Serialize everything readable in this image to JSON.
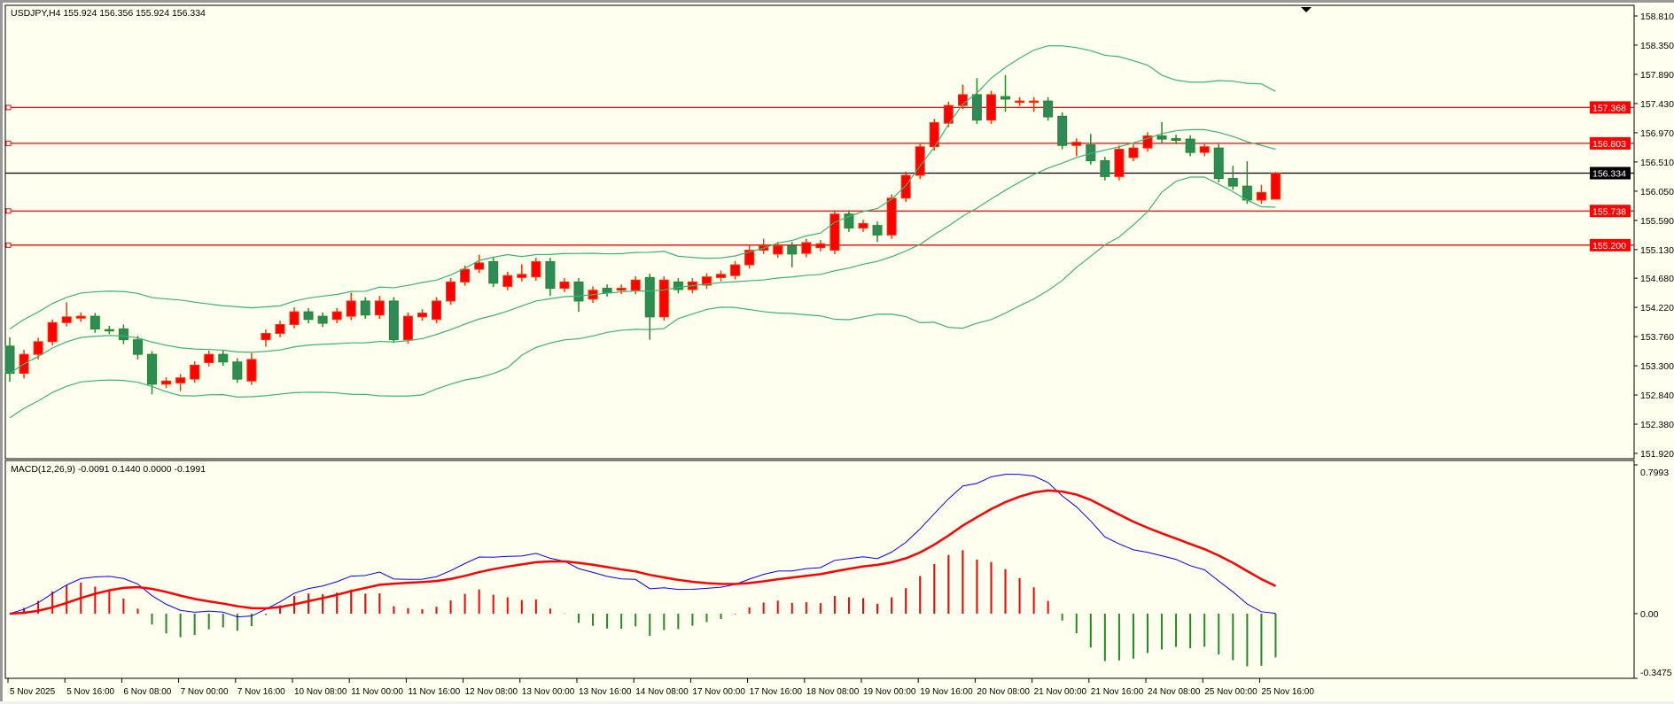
{
  "symbol_header": "USDJPY,H4  155.924 156.356 155.924 156.334",
  "macd_header": "MACD(12,26,9) -0.0091 0.1440 0.0000 -0.1991",
  "colors": {
    "background": "#FFFFF0",
    "bull": "#FF0000",
    "bull_border": "#FF3300",
    "bear": "#2E8B57",
    "bear_border": "#228B22",
    "bands": "#3CB371",
    "level": "#FF0000",
    "current": "#000000",
    "macd_main": "#0000FF",
    "macd_signal": "#FF0000"
  },
  "price_axis": [
    "158.810",
    "158.350",
    "157.890",
    "157.430",
    "156.970",
    "156.510",
    "156.050",
    "155.590",
    "155.130",
    "154.680",
    "154.220",
    "153.760",
    "153.300",
    "152.840",
    "152.380",
    "151.920"
  ],
  "levels": [
    {
      "label": "157.368",
      "price": 157.368,
      "type": "level"
    },
    {
      "label": "156.803",
      "price": 156.803,
      "type": "level"
    },
    {
      "label": "156.334",
      "price": 156.334,
      "type": "current"
    },
    {
      "label": "155.738",
      "price": 155.738,
      "type": "level"
    },
    {
      "label": "155.200",
      "price": 155.2,
      "type": "level"
    }
  ],
  "macd_axis": [
    "0.7993",
    "0.00",
    "-0.3475"
  ],
  "time_axis": [
    "5 Nov 2025",
    "5 Nov 16:00",
    "6 Nov 08:00",
    "7 Nov 00:00",
    "7 Nov 16:00",
    "10 Nov 08:00",
    "11 Nov 00:00",
    "11 Nov 16:00",
    "12 Nov 08:00",
    "13 Nov 00:00",
    "13 Nov 16:00",
    "14 Nov 08:00",
    "17 Nov 00:00",
    "17 Nov 16:00",
    "18 Nov 08:00",
    "19 Nov 00:00",
    "19 Nov 16:00",
    "20 Nov 08:00",
    "21 Nov 00:00",
    "21 Nov 16:00",
    "24 Nov 08:00",
    "25 Nov 00:00",
    "25 Nov 16:00"
  ],
  "chart_data": {
    "type": "candlestick",
    "title": "USDJPY,H4",
    "ylim": [
      151.92,
      158.81
    ],
    "macd_ylim": [
      -0.3475,
      0.7993
    ],
    "bollinger": {
      "period": 20,
      "deviations": 2
    },
    "macd": {
      "fast": 12,
      "slow": 26,
      "signal": 9
    },
    "ohlc": [
      [
        153.61,
        153.75,
        153.05,
        153.18
      ],
      [
        153.18,
        153.55,
        153.1,
        153.48
      ],
      [
        153.48,
        153.74,
        153.4,
        153.68
      ],
      [
        153.68,
        154.03,
        153.62,
        153.98
      ],
      [
        153.98,
        154.3,
        153.92,
        154.07
      ],
      [
        154.05,
        154.14,
        153.99,
        154.08
      ],
      [
        154.08,
        154.13,
        153.82,
        153.88
      ],
      [
        153.87,
        153.93,
        153.8,
        153.86
      ],
      [
        153.88,
        153.95,
        153.64,
        153.71
      ],
      [
        153.71,
        153.77,
        153.4,
        153.48
      ],
      [
        153.48,
        153.53,
        152.85,
        153.01
      ],
      [
        153.01,
        153.12,
        152.95,
        153.06
      ],
      [
        153.03,
        153.17,
        152.9,
        153.11
      ],
      [
        153.09,
        153.37,
        153.03,
        153.31
      ],
      [
        153.35,
        153.54,
        153.29,
        153.48
      ],
      [
        153.48,
        153.54,
        153.3,
        153.36
      ],
      [
        153.36,
        153.42,
        153.03,
        153.09
      ],
      [
        153.06,
        153.5,
        153.0,
        153.4
      ],
      [
        153.71,
        153.87,
        153.6,
        153.81
      ],
      [
        153.81,
        154.01,
        153.75,
        153.95
      ],
      [
        153.95,
        154.22,
        153.89,
        154.15
      ],
      [
        154.15,
        154.21,
        153.97,
        154.03
      ],
      [
        154.08,
        154.14,
        153.91,
        153.97
      ],
      [
        154.03,
        154.21,
        153.97,
        154.15
      ],
      [
        154.08,
        154.45,
        154.02,
        154.32
      ],
      [
        154.32,
        154.38,
        154.04,
        154.1
      ],
      [
        154.1,
        154.4,
        154.04,
        154.32
      ],
      [
        154.32,
        154.38,
        153.66,
        153.71
      ],
      [
        153.71,
        154.14,
        153.65,
        154.08
      ],
      [
        154.07,
        154.19,
        154.01,
        154.13
      ],
      [
        154.03,
        154.38,
        153.97,
        154.32
      ],
      [
        154.32,
        154.68,
        154.26,
        154.62
      ],
      [
        154.62,
        154.88,
        154.56,
        154.82
      ],
      [
        154.82,
        155.05,
        154.76,
        154.92
      ],
      [
        154.94,
        155.0,
        154.54,
        154.6
      ],
      [
        154.55,
        154.78,
        154.49,
        154.72
      ],
      [
        154.69,
        154.9,
        154.63,
        154.74
      ],
      [
        154.7,
        155.0,
        154.64,
        154.94
      ],
      [
        154.94,
        155.0,
        154.4,
        154.52
      ],
      [
        154.52,
        154.68,
        154.46,
        154.62
      ],
      [
        154.62,
        154.68,
        154.15,
        154.32
      ],
      [
        154.35,
        154.55,
        154.29,
        154.49
      ],
      [
        154.52,
        154.58,
        154.39,
        154.45
      ],
      [
        154.49,
        154.58,
        154.43,
        154.52
      ],
      [
        154.49,
        154.71,
        154.43,
        154.65
      ],
      [
        154.69,
        154.75,
        153.71,
        154.07
      ],
      [
        154.07,
        154.71,
        154.01,
        154.65
      ],
      [
        154.62,
        154.68,
        154.44,
        154.5
      ],
      [
        154.5,
        154.68,
        154.44,
        154.62
      ],
      [
        154.57,
        154.76,
        154.51,
        154.7
      ],
      [
        154.69,
        154.8,
        154.63,
        154.74
      ],
      [
        154.72,
        154.95,
        154.66,
        154.89
      ],
      [
        154.89,
        155.2,
        154.83,
        155.12
      ],
      [
        155.12,
        155.3,
        155.06,
        155.19
      ],
      [
        155.06,
        155.25,
        155.0,
        155.19
      ],
      [
        155.19,
        155.25,
        154.85,
        155.06
      ],
      [
        155.07,
        155.3,
        155.01,
        155.24
      ],
      [
        155.16,
        155.28,
        155.1,
        155.22
      ],
      [
        155.12,
        155.75,
        155.06,
        155.69
      ],
      [
        155.69,
        155.75,
        155.41,
        155.47
      ],
      [
        155.47,
        155.6,
        155.41,
        155.54
      ],
      [
        155.51,
        155.57,
        155.25,
        155.36
      ],
      [
        155.36,
        156.0,
        155.3,
        155.94
      ],
      [
        155.94,
        156.36,
        155.88,
        156.3
      ],
      [
        156.3,
        156.81,
        156.24,
        156.75
      ],
      [
        156.75,
        157.19,
        156.69,
        157.13
      ],
      [
        157.12,
        157.46,
        157.06,
        157.4
      ],
      [
        157.4,
        157.73,
        157.34,
        157.57
      ],
      [
        157.57,
        157.83,
        157.11,
        157.17
      ],
      [
        157.17,
        157.63,
        157.11,
        157.57
      ],
      [
        157.54,
        157.88,
        157.3,
        157.5
      ],
      [
        157.45,
        157.53,
        157.39,
        157.47
      ],
      [
        157.45,
        157.53,
        157.3,
        157.47
      ],
      [
        157.47,
        157.53,
        157.16,
        157.22
      ],
      [
        157.23,
        157.29,
        156.71,
        156.77
      ],
      [
        156.77,
        156.88,
        156.6,
        156.82
      ],
      [
        156.78,
        156.95,
        156.47,
        156.53
      ],
      [
        156.53,
        156.59,
        156.22,
        156.28
      ],
      [
        156.28,
        156.77,
        156.22,
        156.71
      ],
      [
        156.58,
        156.79,
        156.52,
        156.73
      ],
      [
        156.73,
        156.98,
        156.67,
        156.92
      ],
      [
        156.92,
        157.14,
        156.81,
        156.87
      ],
      [
        156.88,
        156.94,
        156.79,
        156.85
      ],
      [
        156.87,
        156.93,
        156.6,
        156.66
      ],
      [
        156.66,
        156.79,
        156.6,
        156.75
      ],
      [
        156.73,
        156.79,
        156.19,
        156.25
      ],
      [
        156.25,
        156.45,
        156.07,
        156.13
      ],
      [
        156.13,
        156.52,
        155.85,
        155.91
      ],
      [
        155.91,
        156.15,
        155.85,
        156.03
      ],
      [
        155.924,
        156.356,
        155.924,
        156.334
      ]
    ]
  }
}
